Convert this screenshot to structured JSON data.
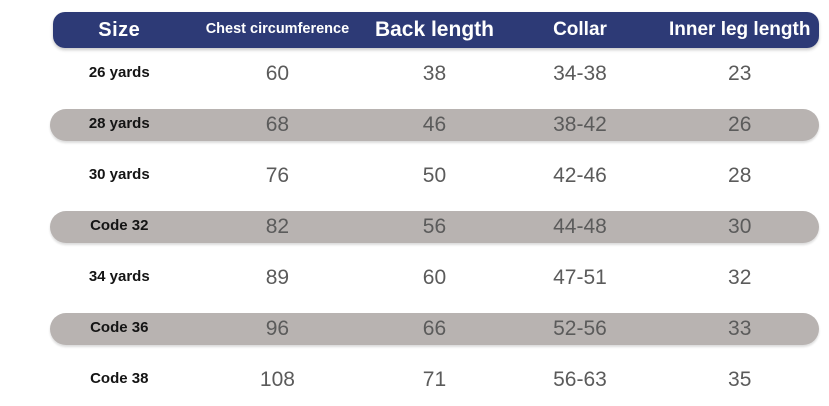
{
  "chart_data": {
    "type": "table",
    "columns": [
      "Size",
      "Chest circumference",
      "Back length",
      "Collar",
      "Inner leg length"
    ],
    "rows": [
      [
        "26 yards",
        "60",
        "38",
        "34-38",
        "23"
      ],
      [
        "28 yards",
        "68",
        "46",
        "38-42",
        "26"
      ],
      [
        "30 yards",
        "76",
        "50",
        "42-46",
        "28"
      ],
      [
        "Code 32",
        "82",
        "56",
        "44-48",
        "30"
      ],
      [
        "34 yards",
        "89",
        "60",
        "47-51",
        "32"
      ],
      [
        "Code 36",
        "96",
        "66",
        "52-56",
        "33"
      ],
      [
        "Code 38",
        "108",
        "71",
        "56-63",
        "35"
      ]
    ],
    "striped_row_indices": [
      1,
      3,
      5
    ],
    "legend": "none",
    "grid": false,
    "colors": {
      "header_bg": "#2d3a76",
      "header_text": "#ffffff",
      "stripe_bg": "#b8b3b1",
      "size_text": "#141414",
      "value_text": "#5b5b5b",
      "background": "#ffffff"
    }
  }
}
